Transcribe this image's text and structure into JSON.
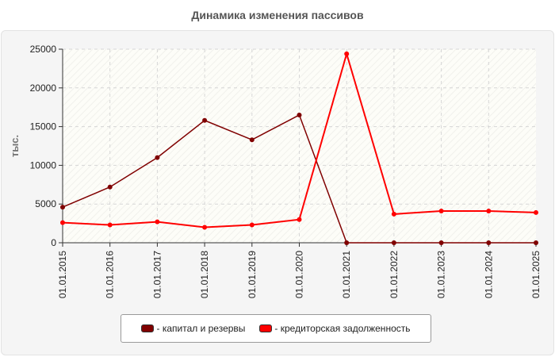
{
  "chart_data": {
    "type": "line",
    "title": "Динамика изменения пассивов",
    "ylabel": "тыс.",
    "xlabel": "",
    "x": [
      "01.01.2015",
      "01.01.2016",
      "01.01.2017",
      "01.01.2018",
      "01.01.2019",
      "01.01.2020",
      "01.01.2021",
      "01.01.2022",
      "01.01.2023",
      "01.01.2024",
      "01.01.2025"
    ],
    "ylim": [
      0,
      25000
    ],
    "yticks": [
      0,
      5000,
      10000,
      15000,
      20000,
      25000
    ],
    "grid": true,
    "legend_position": "bottom",
    "series": [
      {
        "name": "- капитал и резервы",
        "color": "#800000",
        "values": [
          4600,
          7200,
          11000,
          15800,
          13300,
          16500,
          0,
          0,
          0,
          0,
          0
        ]
      },
      {
        "name": "- кредиторская задолженность",
        "color": "#ff0000",
        "values": [
          2600,
          2300,
          2700,
          2000,
          2300,
          3000,
          24400,
          3700,
          4100,
          4100,
          3900
        ]
      }
    ]
  }
}
